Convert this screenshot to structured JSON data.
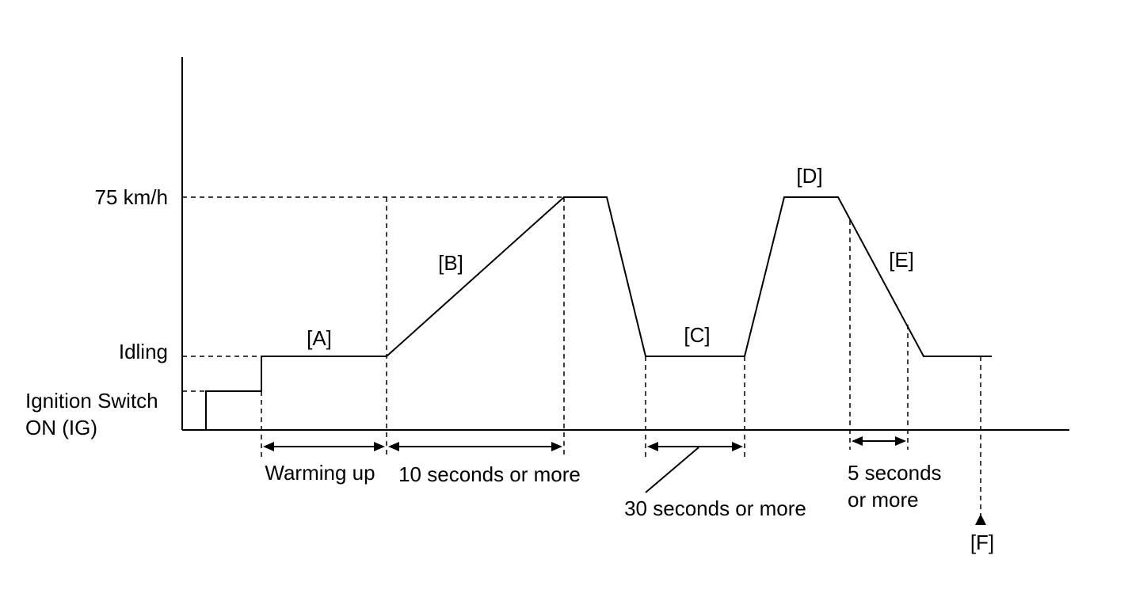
{
  "y_axis": {
    "speed_75": "75 km/h",
    "idling": "Idling",
    "ignition_line1": "Ignition Switch",
    "ignition_line2": "ON (IG)"
  },
  "phases": {
    "a": "[A]",
    "b": "[B]",
    "c": "[C]",
    "d": "[D]",
    "e": "[E]",
    "f": "[F]"
  },
  "durations": {
    "warming_up": "Warming up",
    "ten_seconds": "10 seconds or more",
    "thirty_seconds": "30 seconds or more",
    "five_seconds_line1": "5 seconds",
    "five_seconds_line2": "or more"
  }
}
